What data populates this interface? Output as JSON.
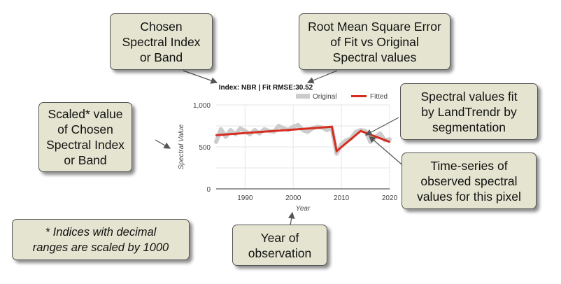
{
  "chart_data": {
    "type": "line",
    "title": "Index: NBR | Fit RMSE:30.52",
    "xlabel": "Year",
    "ylabel": "Spectral Value",
    "xlim": [
      1984,
      2020
    ],
    "ylim": [
      0,
      1000
    ],
    "xticks": [
      1990,
      2000,
      2010,
      2020
    ],
    "xtick_labels": [
      "1990",
      "2000",
      "2010",
      "2020"
    ],
    "yticks": [
      0,
      500,
      1000
    ],
    "ytick_labels": [
      "0",
      "500",
      "1,000"
    ],
    "grid": true,
    "legend": "top-right",
    "series": [
      {
        "name": "Original",
        "color": "#cccccc",
        "x": [
          1984,
          1985,
          1986,
          1987,
          1988,
          1989,
          1990,
          1991,
          1992,
          1993,
          1994,
          1995,
          1996,
          1997,
          1998,
          1999,
          2000,
          2001,
          2002,
          2003,
          2004,
          2005,
          2006,
          2007,
          2008,
          2009,
          2010,
          2011,
          2012,
          2013,
          2014,
          2015,
          2016,
          2017,
          2018,
          2019,
          2020
        ],
        "values": [
          560,
          710,
          620,
          700,
          650,
          720,
          690,
          650,
          700,
          660,
          710,
          690,
          680,
          750,
          720,
          700,
          740,
          760,
          700,
          680,
          720,
          740,
          730,
          700,
          730,
          420,
          530,
          580,
          600,
          680,
          700,
          690,
          560,
          610,
          660,
          580,
          590
        ]
      },
      {
        "name": "Fitted",
        "color": "#d62d20",
        "x": [
          1984,
          1996,
          2008,
          2009,
          2014,
          2020
        ],
        "values": [
          640,
          690,
          740,
          450,
          690,
          560
        ]
      }
    ]
  },
  "callouts": {
    "index": "Chosen\nSpectral Index\nor Band",
    "rmse": "Root Mean Square Error\nof Fit vs Original\nSpectral values",
    "scaled": "Scaled* value\nof Chosen\nSpectral Index\nor Band",
    "fitted": "Spectral values fit\nby LandTrendr by\nsegmentation",
    "timeseries": "Time-series of\nobserved spectral\nvalues for this pixel",
    "year": "Year of\nobservation",
    "note": "* Indices with decimal\nranges are scaled by 1000"
  }
}
